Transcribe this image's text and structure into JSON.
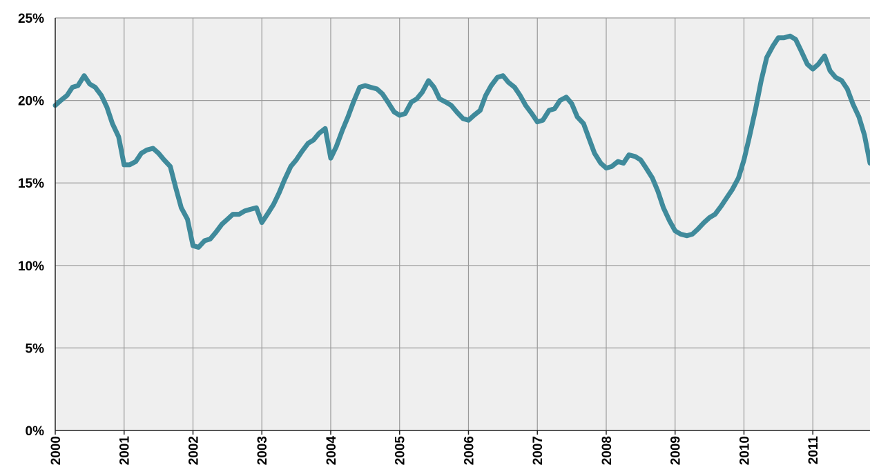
{
  "colors": {
    "plot_background": "#efefef",
    "gridline": "#9a9a9a",
    "axis": "#222222",
    "series_line": "#3f8a9b"
  },
  "chart_data": {
    "type": "line",
    "title": "",
    "xlabel": "",
    "ylabel": "",
    "x_tick_labels": [
      "2000",
      "2001",
      "2002",
      "2003",
      "2004",
      "2005",
      "2006",
      "2007",
      "2008",
      "2009",
      "2010",
      "2011"
    ],
    "y_tick_labels": [
      "0%",
      "5%",
      "10%",
      "15%",
      "20%",
      "25%"
    ],
    "y_ticks": [
      0,
      5,
      10,
      15,
      20,
      25
    ],
    "xlim": [
      2000.0,
      2011.83
    ],
    "ylim": [
      0,
      25
    ],
    "grid": true,
    "legend": "none",
    "series": [
      {
        "color": "#3f8a9b",
        "x": [
          2000.0,
          2000.08,
          2000.17,
          2000.25,
          2000.33,
          2000.42,
          2000.5,
          2000.58,
          2000.67,
          2000.75,
          2000.83,
          2000.92,
          2001.0,
          2001.08,
          2001.17,
          2001.25,
          2001.33,
          2001.42,
          2001.5,
          2001.58,
          2001.67,
          2001.75,
          2001.83,
          2001.92,
          2002.0,
          2002.08,
          2002.17,
          2002.25,
          2002.33,
          2002.42,
          2002.5,
          2002.58,
          2002.67,
          2002.75,
          2002.83,
          2002.92,
          2003.0,
          2003.08,
          2003.17,
          2003.25,
          2003.33,
          2003.42,
          2003.5,
          2003.58,
          2003.67,
          2003.75,
          2003.83,
          2003.92,
          2004.0,
          2004.08,
          2004.17,
          2004.25,
          2004.33,
          2004.42,
          2004.5,
          2004.58,
          2004.67,
          2004.75,
          2004.83,
          2004.92,
          2005.0,
          2005.08,
          2005.17,
          2005.25,
          2005.33,
          2005.42,
          2005.5,
          2005.58,
          2005.67,
          2005.75,
          2005.83,
          2005.92,
          2006.0,
          2006.08,
          2006.17,
          2006.25,
          2006.33,
          2006.42,
          2006.5,
          2006.58,
          2006.67,
          2006.75,
          2006.83,
          2006.92,
          2007.0,
          2007.08,
          2007.17,
          2007.25,
          2007.33,
          2007.42,
          2007.5,
          2007.58,
          2007.67,
          2007.75,
          2007.83,
          2007.92,
          2008.0,
          2008.08,
          2008.17,
          2008.25,
          2008.33,
          2008.42,
          2008.5,
          2008.58,
          2008.67,
          2008.75,
          2008.83,
          2008.92,
          2009.0,
          2009.08,
          2009.17,
          2009.25,
          2009.33,
          2009.42,
          2009.5,
          2009.58,
          2009.67,
          2009.75,
          2009.83,
          2009.92,
          2010.0,
          2010.08,
          2010.17,
          2010.25,
          2010.33,
          2010.42,
          2010.5,
          2010.58,
          2010.67,
          2010.75,
          2010.83,
          2010.92,
          2011.0,
          2011.08,
          2011.17,
          2011.25,
          2011.33,
          2011.42,
          2011.5,
          2011.58,
          2011.67,
          2011.75,
          2011.83
        ],
        "y": [
          19.7,
          20.0,
          20.3,
          20.8,
          20.9,
          21.5,
          21.0,
          20.8,
          20.3,
          19.6,
          18.6,
          17.8,
          16.1,
          16.1,
          16.3,
          16.8,
          17.0,
          17.1,
          16.8,
          16.4,
          16.0,
          14.7,
          13.5,
          12.8,
          11.2,
          11.1,
          11.5,
          11.6,
          12.0,
          12.5,
          12.8,
          13.1,
          13.1,
          13.3,
          13.4,
          13.5,
          12.6,
          13.1,
          13.7,
          14.4,
          15.2,
          16.0,
          16.4,
          16.9,
          17.4,
          17.6,
          18.0,
          18.3,
          16.5,
          17.2,
          18.2,
          19.0,
          19.9,
          20.8,
          20.9,
          20.8,
          20.7,
          20.4,
          19.9,
          19.3,
          19.1,
          19.2,
          19.9,
          20.1,
          20.5,
          21.2,
          20.8,
          20.1,
          19.9,
          19.7,
          19.3,
          18.9,
          18.8,
          19.1,
          19.4,
          20.3,
          20.9,
          21.4,
          21.5,
          21.1,
          20.8,
          20.3,
          19.7,
          19.2,
          18.7,
          18.8,
          19.4,
          19.5,
          20.0,
          20.2,
          19.8,
          19.0,
          18.6,
          17.7,
          16.8,
          16.2,
          15.9,
          16.0,
          16.3,
          16.2,
          16.7,
          16.6,
          16.4,
          15.9,
          15.3,
          14.5,
          13.5,
          12.7,
          12.1,
          11.9,
          11.8,
          11.9,
          12.2,
          12.6,
          12.9,
          13.1,
          13.6,
          14.1,
          14.6,
          15.3,
          16.4,
          17.8,
          19.5,
          21.2,
          22.6,
          23.3,
          23.8,
          23.8,
          23.9,
          23.7,
          23.0,
          22.2,
          21.9,
          22.2,
          22.7,
          21.8,
          21.4,
          21.2,
          20.7,
          19.8,
          19.0,
          17.9,
          16.2
        ]
      }
    ]
  }
}
